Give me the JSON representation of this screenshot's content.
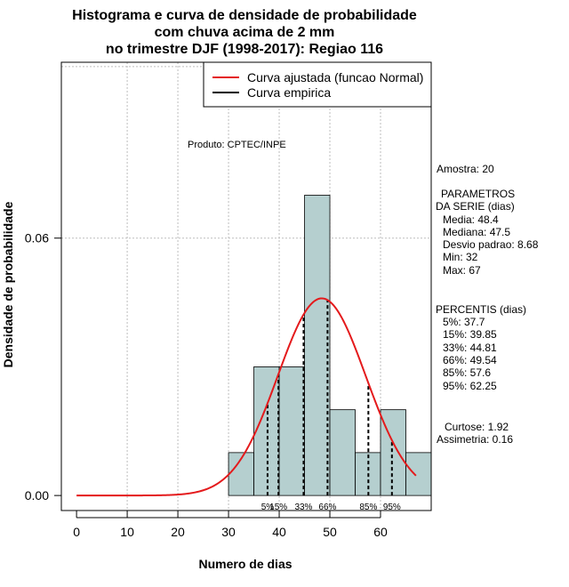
{
  "chart_data": {
    "type": "histogram",
    "title": [
      "Histograma e curva de densidade de probabilidade",
      "com chuva acima de 2 mm",
      "no trimestre DJF (1998-2017): Regiao 116"
    ],
    "xlabel": "Numero de dias",
    "ylabel": "Densidade de probabilidade",
    "xlim": [
      -3,
      70
    ],
    "ylim": [
      -0.0035,
      0.101
    ],
    "x_ticks": [
      0,
      10,
      20,
      30,
      40,
      50,
      60
    ],
    "y_ticks": [
      0.0,
      0.06
    ],
    "y_tick_labels": [
      "0.00",
      "0.06"
    ],
    "grid": true,
    "grid_y": [
      0.06,
      0.1
    ],
    "grid_x": [
      10,
      20,
      30,
      40,
      50,
      60
    ],
    "bins": [
      {
        "from": 30,
        "to": 35,
        "density": 0.01
      },
      {
        "from": 35,
        "to": 40,
        "density": 0.03
      },
      {
        "from": 40,
        "to": 45,
        "density": 0.03
      },
      {
        "from": 45,
        "to": 50,
        "density": 0.07
      },
      {
        "from": 50,
        "to": 55,
        "density": 0.02
      },
      {
        "from": 55,
        "to": 60,
        "density": 0.01
      },
      {
        "from": 60,
        "to": 65,
        "density": 0.02
      },
      {
        "from": 65,
        "to": 70,
        "density": 0.01
      }
    ],
    "fitted_curve": {
      "name": "Curva ajustada (funcao Normal)",
      "mean": 48.4,
      "sd": 8.68,
      "x_from": 0,
      "x_to": 67,
      "color": "#e41a1c"
    },
    "empirical_curve": {
      "name": "Curva empirica",
      "color": "#000000"
    },
    "percentile_lines": [
      {
        "label": "5%",
        "x": 37.7
      },
      {
        "label": "15%",
        "x": 39.85
      },
      {
        "label": "33%",
        "x": 44.81
      },
      {
        "label": "66%",
        "x": 49.54
      },
      {
        "label": "85%",
        "x": 57.6
      },
      {
        "label": "95%",
        "x": 62.25
      }
    ],
    "legend": [
      "Curva ajustada (funcao Normal)",
      "Curva empirica"
    ],
    "legend_position": "top-right",
    "bar_color": "#b5cfcf"
  },
  "annotations": {
    "produto": "Produto: CPTEC/INPE",
    "amostra": "Amostra: 20",
    "parametros_title_1": "PARAMETROS",
    "parametros_title_2": "DA SERIE (dias)",
    "media": "Media: 48.4",
    "mediana": "Mediana: 47.5",
    "desvio": "Desvio padrao: 8.68",
    "min": "Min: 32",
    "max": "Max: 67",
    "percentis_title": "PERCENTIS (dias)",
    "p5": "5%: 37.7",
    "p15": "15%: 39.85",
    "p33": "33%: 44.81",
    "p66": "66%: 49.54",
    "p85": "85%: 57.6",
    "p95": "95%: 62.25",
    "curtose": "Curtose: 1.92",
    "assimetria": "Assimetria: 0.16"
  }
}
